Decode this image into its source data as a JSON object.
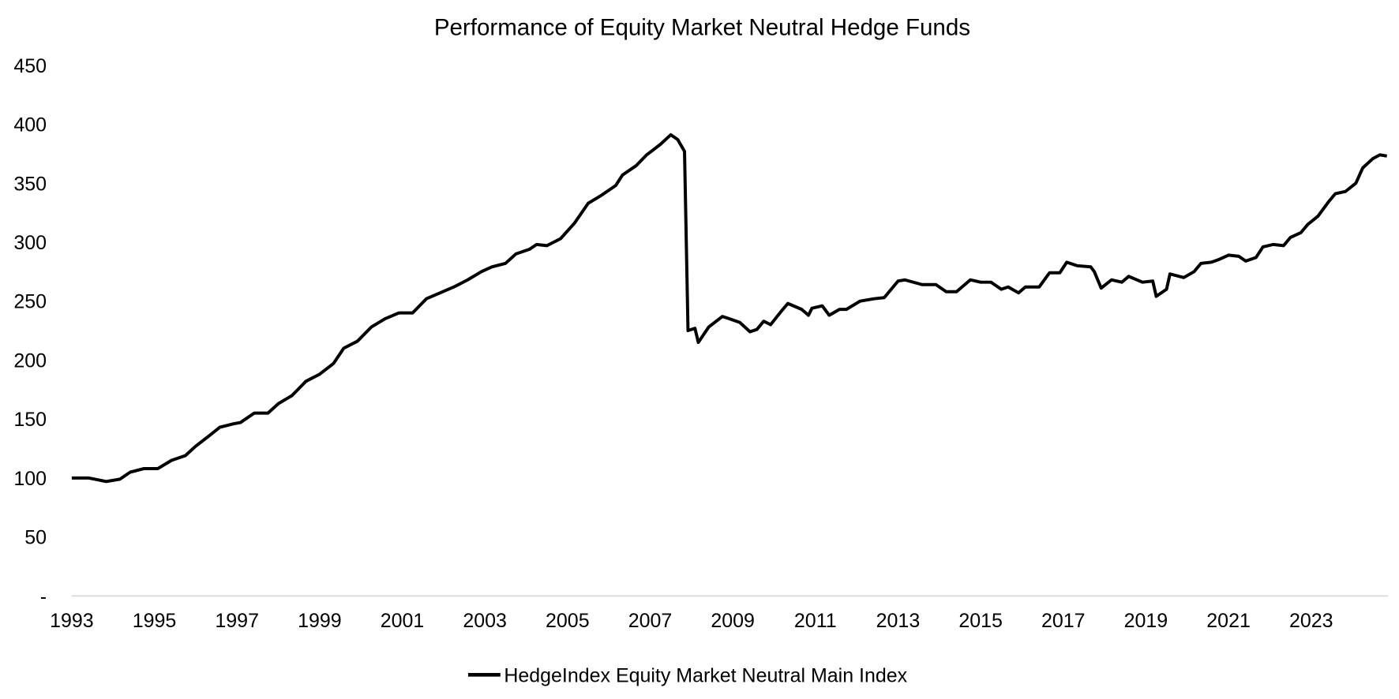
{
  "chart_data": {
    "type": "line",
    "title": "Performance of Equity Market Neutral Hedge Funds",
    "xlabel": "",
    "ylabel": "",
    "ylim": [
      0,
      450
    ],
    "xlim": [
      "1993-01",
      "2024-12"
    ],
    "grid": false,
    "legend_placement": "bottom",
    "y_ticks": [
      0,
      50,
      100,
      150,
      200,
      250,
      300,
      350,
      400,
      450
    ],
    "y_tick_labels": [
      "-",
      "50",
      "100",
      "150",
      "200",
      "250",
      "300",
      "350",
      "400",
      "450"
    ],
    "x_tick_labels": [
      "1993",
      "1995",
      "1997",
      "1999",
      "2001",
      "2003",
      "2005",
      "2007",
      "2009",
      "2011",
      "2013",
      "2015",
      "2017",
      "2019",
      "2021",
      "2023"
    ],
    "colors": {
      "series": "#000000",
      "axis": "#d9d9d9"
    },
    "series": [
      {
        "name": "HedgeIndex Equity Market Neutral Main Index",
        "points": [
          [
            "1993-01",
            100
          ],
          [
            "1993-06",
            100
          ],
          [
            "1993-11",
            97
          ],
          [
            "1994-03",
            99
          ],
          [
            "1994-06",
            105
          ],
          [
            "1994-10",
            108
          ],
          [
            "1995-02",
            108
          ],
          [
            "1995-06",
            115
          ],
          [
            "1995-10",
            119
          ],
          [
            "1996-01",
            127
          ],
          [
            "1996-05",
            136
          ],
          [
            "1996-08",
            143
          ],
          [
            "1996-12",
            146
          ],
          [
            "1997-02",
            147
          ],
          [
            "1997-06",
            155
          ],
          [
            "1997-10",
            155
          ],
          [
            "1998-01",
            163
          ],
          [
            "1998-05",
            170
          ],
          [
            "1998-09",
            182
          ],
          [
            "1999-01",
            188
          ],
          [
            "1999-05",
            197
          ],
          [
            "1999-08",
            210
          ],
          [
            "1999-12",
            216
          ],
          [
            "2000-04",
            228
          ],
          [
            "2000-08",
            235
          ],
          [
            "2000-12",
            240
          ],
          [
            "2001-04",
            240
          ],
          [
            "2001-08",
            252
          ],
          [
            "2001-12",
            257
          ],
          [
            "2002-04",
            262
          ],
          [
            "2002-08",
            268
          ],
          [
            "2002-12",
            275
          ],
          [
            "2003-03",
            279
          ],
          [
            "2003-07",
            282
          ],
          [
            "2003-10",
            290
          ],
          [
            "2004-02",
            294
          ],
          [
            "2004-04",
            298
          ],
          [
            "2004-07",
            297
          ],
          [
            "2004-11",
            303
          ],
          [
            "2005-03",
            316
          ],
          [
            "2005-07",
            333
          ],
          [
            "2005-11",
            340
          ],
          [
            "2006-03",
            348
          ],
          [
            "2006-05",
            357
          ],
          [
            "2006-09",
            365
          ],
          [
            "2006-12",
            374
          ],
          [
            "2007-04",
            383
          ],
          [
            "2007-07",
            391
          ],
          [
            "2007-09",
            387
          ],
          [
            "2007-11",
            377
          ],
          [
            "2007-12",
            225
          ],
          [
            "2008-02",
            227
          ],
          [
            "2008-03",
            215
          ],
          [
            "2008-06",
            228
          ],
          [
            "2008-10",
            237
          ],
          [
            "2008-12",
            235
          ],
          [
            "2009-03",
            232
          ],
          [
            "2009-06",
            224
          ],
          [
            "2009-08",
            226
          ],
          [
            "2009-10",
            233
          ],
          [
            "2009-12",
            230
          ],
          [
            "2010-03",
            241
          ],
          [
            "2010-05",
            248
          ],
          [
            "2010-09",
            243
          ],
          [
            "2010-11",
            238
          ],
          [
            "2010-12",
            244
          ],
          [
            "2011-03",
            246
          ],
          [
            "2011-05",
            238
          ],
          [
            "2011-08",
            243
          ],
          [
            "2011-10",
            243
          ],
          [
            "2012-02",
            250
          ],
          [
            "2012-06",
            252
          ],
          [
            "2012-09",
            253
          ],
          [
            "2013-01",
            267
          ],
          [
            "2013-03",
            268
          ],
          [
            "2013-08",
            264
          ],
          [
            "2013-12",
            264
          ],
          [
            "2014-03",
            258
          ],
          [
            "2014-06",
            258
          ],
          [
            "2014-10",
            268
          ],
          [
            "2015-01",
            266
          ],
          [
            "2015-04",
            266
          ],
          [
            "2015-07",
            260
          ],
          [
            "2015-09",
            262
          ],
          [
            "2015-12",
            257
          ],
          [
            "2016-02",
            262
          ],
          [
            "2016-06",
            262
          ],
          [
            "2016-09",
            274
          ],
          [
            "2016-12",
            274
          ],
          [
            "2017-02",
            283
          ],
          [
            "2017-05",
            280
          ],
          [
            "2017-09",
            279
          ],
          [
            "2017-10",
            275
          ],
          [
            "2017-12",
            261
          ],
          [
            "2018-03",
            268
          ],
          [
            "2018-06",
            266
          ],
          [
            "2018-08",
            271
          ],
          [
            "2018-12",
            266
          ],
          [
            "2019-03",
            267
          ],
          [
            "2019-04",
            254
          ],
          [
            "2019-07",
            260
          ],
          [
            "2019-08",
            273
          ],
          [
            "2019-12",
            270
          ],
          [
            "2020-03",
            275
          ],
          [
            "2020-05",
            282
          ],
          [
            "2020-08",
            283
          ],
          [
            "2020-10",
            285
          ],
          [
            "2021-01",
            289
          ],
          [
            "2021-04",
            288
          ],
          [
            "2021-06",
            284
          ],
          [
            "2021-09",
            287
          ],
          [
            "2021-11",
            296
          ],
          [
            "2022-02",
            298
          ],
          [
            "2022-05",
            297
          ],
          [
            "2022-07",
            304
          ],
          [
            "2022-10",
            308
          ],
          [
            "2022-12",
            315
          ],
          [
            "2023-03",
            322
          ],
          [
            "2023-06",
            334
          ],
          [
            "2023-08",
            341
          ],
          [
            "2023-11",
            343
          ],
          [
            "2024-02",
            350
          ],
          [
            "2024-04",
            363
          ],
          [
            "2024-07",
            371
          ],
          [
            "2024-09",
            374
          ],
          [
            "2024-11",
            373
          ]
        ]
      }
    ]
  }
}
